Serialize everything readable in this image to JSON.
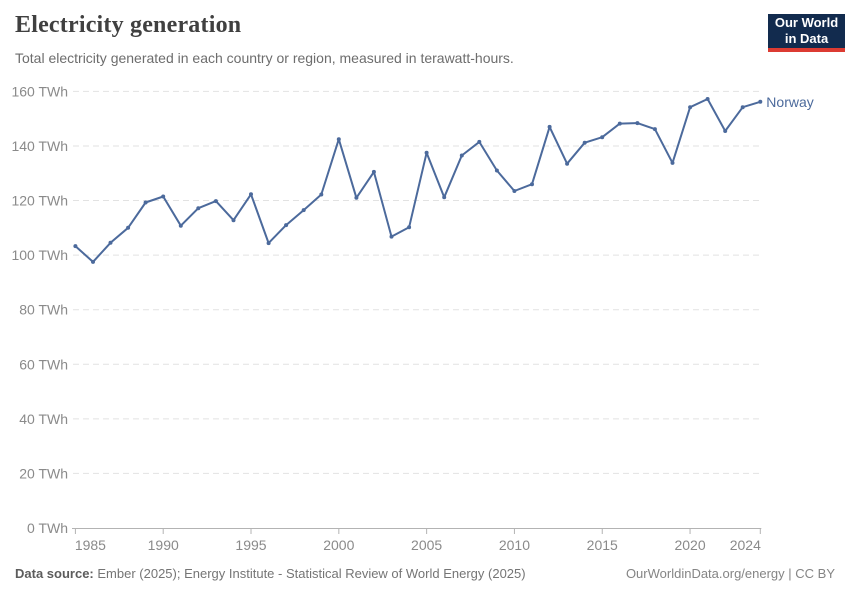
{
  "header": {
    "title": "Electricity generation",
    "subtitle": "Total electricity generated in each country or region, measured in terawatt-hours.",
    "logo": {
      "line1": "Our World",
      "line2": "in Data",
      "bg_color": "#122b4e",
      "bar_color": "#dc3b32",
      "text_color": "#ffffff"
    }
  },
  "footer": {
    "source_label": "Data source:",
    "source_text": "Ember (2025); Energy Institute - Statistical Review of World Energy (2025)",
    "attribution": "OurWorldinData.org/energy | CC BY"
  },
  "chart_data": {
    "type": "line",
    "title": "Electricity generation",
    "xlabel": "",
    "ylabel": "",
    "unit": "TWh",
    "ylim": [
      0,
      160
    ],
    "y_ticks": [
      0,
      20,
      40,
      60,
      80,
      100,
      120,
      140,
      160
    ],
    "y_tick_suffix": " TWh",
    "x_ticks": [
      1985,
      1990,
      1995,
      2000,
      2005,
      2010,
      2015,
      2020,
      2024
    ],
    "x_range": [
      1985,
      2024
    ],
    "grid": true,
    "legend": "end-of-line-label",
    "x": [
      1985,
      1986,
      1987,
      1988,
      1989,
      1990,
      1991,
      1992,
      1993,
      1994,
      1995,
      1996,
      1997,
      1998,
      1999,
      2000,
      2001,
      2002,
      2003,
      2004,
      2005,
      2006,
      2007,
      2008,
      2009,
      2010,
      2011,
      2012,
      2013,
      2014,
      2015,
      2016,
      2017,
      2018,
      2019,
      2020,
      2021,
      2022,
      2023,
      2024
    ],
    "series": [
      {
        "name": "Norway",
        "color": "#4C6A9C",
        "values": [
          103.3,
          97.5,
          104.5,
          110.0,
          119.3,
          121.5,
          110.8,
          117.2,
          119.8,
          112.8,
          122.3,
          104.4,
          111.0,
          116.5,
          122.2,
          142.5,
          121.0,
          130.5,
          106.8,
          110.2,
          137.5,
          121.2,
          136.5,
          141.5,
          131.0,
          123.5,
          126.0,
          147.0,
          133.5,
          141.2,
          143.2,
          148.2,
          148.4,
          146.2,
          133.8,
          154.2,
          157.2,
          145.5,
          154.2,
          156.2
        ]
      }
    ],
    "grid_color": "#e2e2e2",
    "axis_color": "#b3b3b3",
    "tick_label_color": "#8a8a8a"
  }
}
